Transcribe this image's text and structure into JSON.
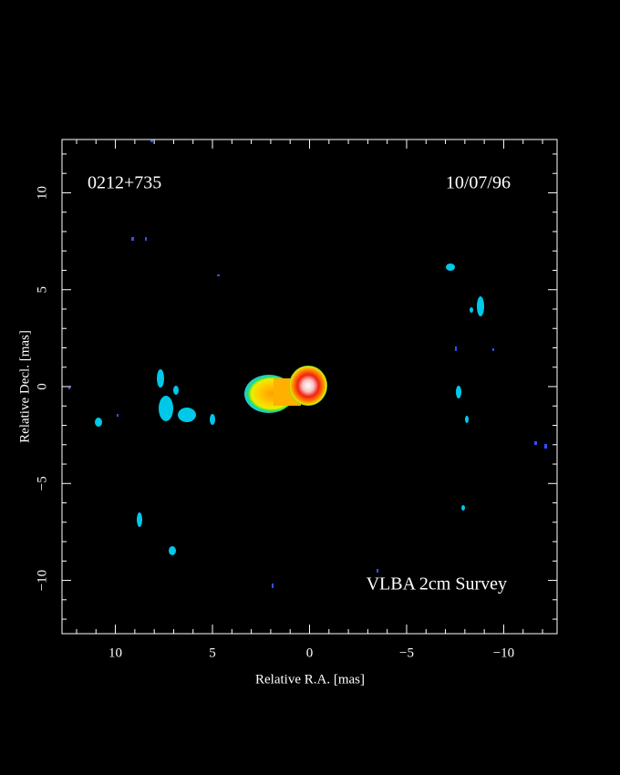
{
  "chart_data": {
    "type": "image",
    "source": "0212+735",
    "date": "10/07/96",
    "survey": "VLBA 2cm Survey",
    "x_label": "Relative R.A. [mas]",
    "y_label": "Relative Decl. [mas]",
    "xlim": [
      12.75,
      -12.75
    ],
    "ylim": [
      -12.75,
      12.75
    ],
    "xticks": [
      10,
      5,
      0,
      {
        "value": -5,
        "label": "−5"
      },
      {
        "value": -10,
        "label": "−10"
      }
    ],
    "yticks": [
      {
        "value": -10,
        "label": "−10"
      },
      {
        "value": -5,
        "label": "−5"
      },
      0,
      5,
      10
    ],
    "xminor": [
      12,
      11,
      9,
      8,
      7,
      6,
      4,
      3,
      2,
      1,
      -1,
      -2,
      -3,
      -4,
      -6,
      -7,
      -8,
      -9,
      -11,
      -12
    ],
    "yminor": [
      -12,
      -11,
      -9,
      -8,
      -7,
      -6,
      -4,
      -3,
      -2,
      -1,
      1,
      2,
      3,
      4,
      6,
      7,
      8,
      9,
      11,
      12
    ]
  }
}
